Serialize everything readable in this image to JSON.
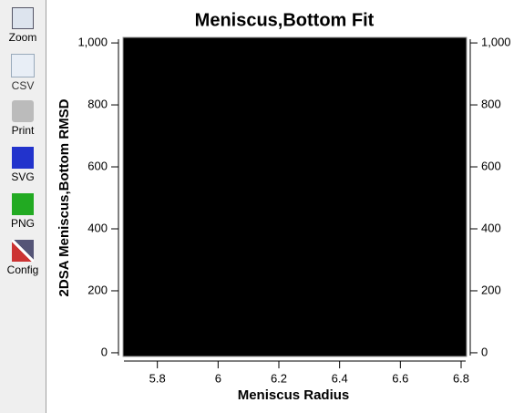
{
  "toolbar": {
    "buttons": [
      "Zoom",
      "CSV",
      "Print",
      "SVG",
      "PNG",
      "Config"
    ]
  },
  "chart_data": {
    "type": "scatter",
    "title": "Meniscus,Bottom Fit",
    "x_label": "Meniscus Radius",
    "y_label": "2DSA Meniscus,Bottom RMSD",
    "background": "#000000",
    "xlim": [
      5.69,
      6.815
    ],
    "xticks": [
      5.8,
      6,
      6.2,
      6.4,
      6.6,
      6.8
    ],
    "ylim": [
      -9,
      1012
    ],
    "yticks": [
      0,
      200,
      400,
      600,
      800,
      {
        "value": 1000,
        "label": "1,000"
      }
    ],
    "y2lim": [
      -9,
      1012
    ],
    "y2ticks": [
      0,
      200,
      400,
      600,
      800,
      {
        "value": 1000,
        "label": "1,000"
      }
    ]
  }
}
